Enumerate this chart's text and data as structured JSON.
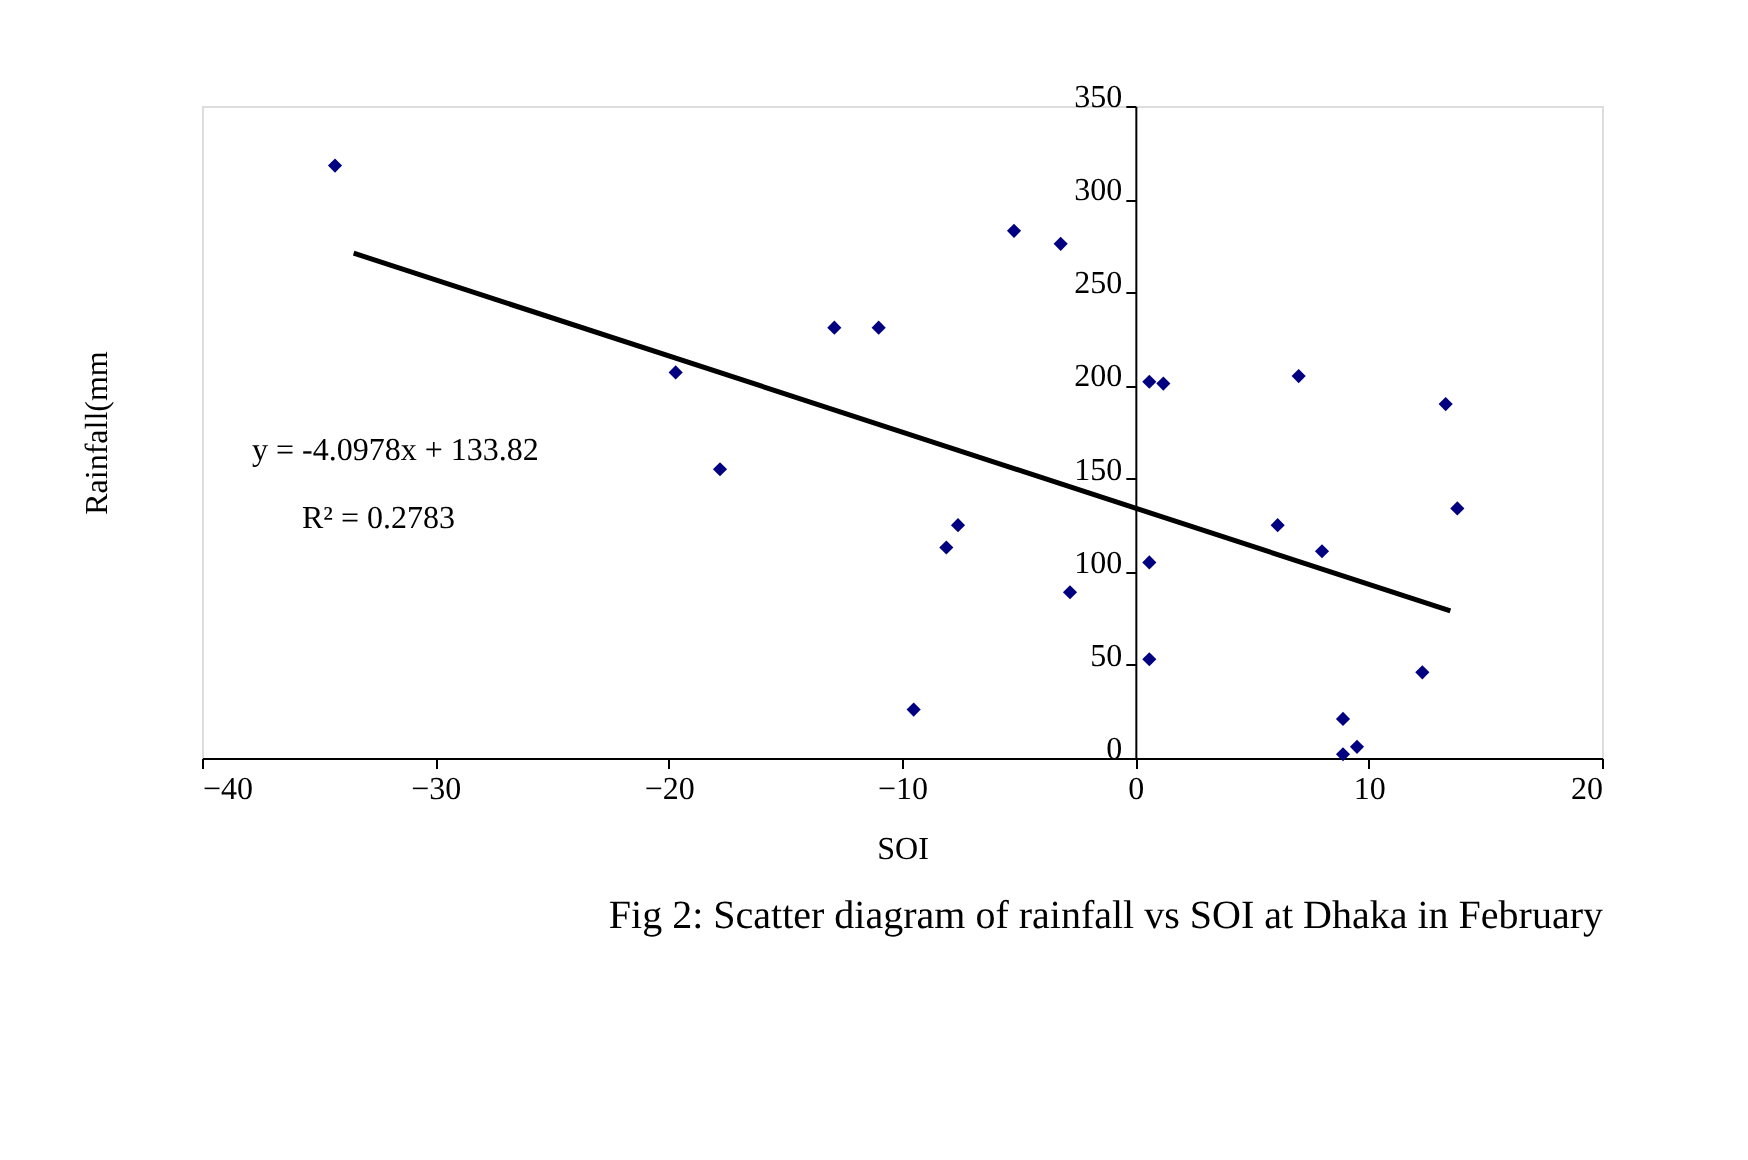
{
  "chart_data": {
    "type": "scatter",
    "xlabel": "SOI",
    "ylabel": "Rainfall(mm",
    "xlim": [
      -40,
      20
    ],
    "xticks": [
      -40,
      -30,
      -20,
      -10,
      0,
      10,
      20
    ],
    "ylim": [
      0,
      350
    ],
    "yticks": [
      0,
      50,
      100,
      150,
      200,
      250,
      300,
      350
    ],
    "grid": false,
    "marker": "diamond",
    "series": [
      {
        "color": "#000080",
        "x": [
          -34.3,
          -19.7,
          -17.8,
          -12.9,
          -11.0,
          -9.5,
          -8.1,
          -7.6,
          -5.2,
          -3.2,
          -2.8,
          0.6,
          1.2,
          0.6,
          0.6,
          6.1,
          7.0,
          8.0,
          8.9,
          8.9,
          9.5,
          12.3,
          13.3,
          13.8
        ],
        "values": [
          318,
          207,
          155,
          231,
          231,
          26,
          113,
          125,
          283,
          276,
          89,
          202,
          201,
          105,
          53,
          125,
          205,
          111,
          21,
          2,
          6,
          46,
          190,
          134
        ]
      },
      {
        "type": "line",
        "marker": "none",
        "line_style": "solid",
        "color": "#000000",
        "x": [
          -33.5,
          13.5
        ],
        "values": [
          271,
          79
        ]
      }
    ],
    "annotations": [
      "y = -4.0978x + 133.82",
      "R² = 0.2783",
      "Fig 2: Scatter diagram of rainfall vs SOI at Dhaka in February"
    ]
  }
}
